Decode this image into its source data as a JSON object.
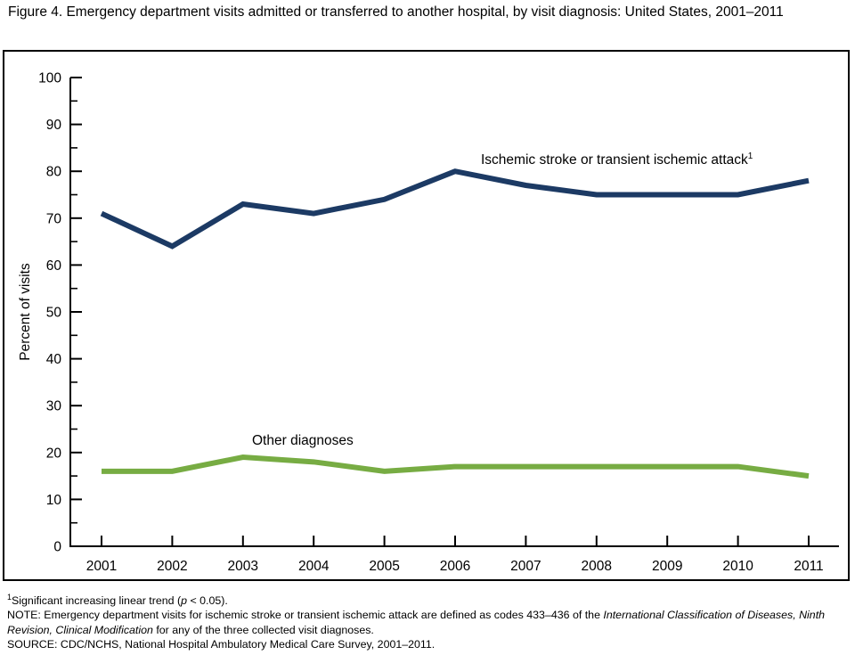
{
  "page": {
    "title": "Figure 4. Emergency department visits admitted or transferred to another hospital, by visit diagnosis: United States, 2001–2011"
  },
  "chart_data": {
    "type": "line",
    "title": "Figure 4. Emergency department visits admitted or transferred to another hospital, by visit diagnosis: United States, 2001–2011",
    "xlabel": "",
    "ylabel": "Percent of visits",
    "ylim": [
      0,
      100
    ],
    "y_major_step": 10,
    "y_minor_step": 5,
    "grid": false,
    "legend_position": "inline-labels",
    "categories": [
      "2001",
      "2002",
      "2003",
      "2004",
      "2005",
      "2006",
      "2007",
      "2008",
      "2009",
      "2010",
      "2011"
    ],
    "series": [
      {
        "name": "Ischemic stroke or transient ischemic attack",
        "label": "Ischemic stroke or transient ischemic attack",
        "label_sup": "1",
        "color": "#1c3a64",
        "values": [
          71,
          64,
          73,
          71,
          74,
          80,
          77,
          75,
          75,
          75,
          78
        ]
      },
      {
        "name": "Other diagnoses",
        "label": "Other diagnoses",
        "label_sup": "",
        "color": "#77ac43",
        "values": [
          16,
          16,
          19,
          18,
          16,
          17,
          17,
          17,
          17,
          17,
          15
        ]
      }
    ]
  },
  "footnotes": {
    "fn1_sup": "1",
    "fn1_pre": "Significant increasing linear trend (",
    "fn1_italic": "p",
    "fn1_post": " < 0.05).",
    "note_pre": "NOTE: Emergency department visits for ischemic stroke or transient ischemic attack are defined as codes 433–436 of the ",
    "note_italic": "International Classification of Diseases, Ninth Revision, Clinical Modification",
    "note_post": " for any of the three collected visit diagnoses.",
    "source": "SOURCE: CDC/NCHS, National Hospital Ambulatory Medical Care Survey, 2001–2011."
  }
}
